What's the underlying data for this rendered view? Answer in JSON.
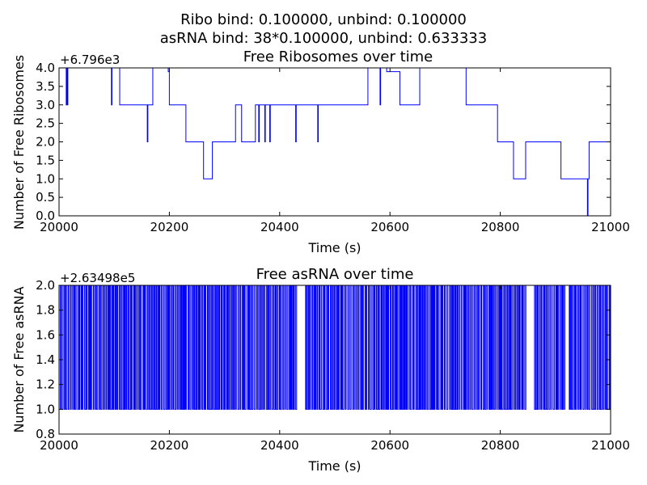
{
  "figure": {
    "suptitle_line1": "Ribo bind: 0.100000, unbind: 0.100000",
    "suptitle_line2": "asRNA bind: 38*0.100000, unbind: 0.633333"
  },
  "chart_data": [
    {
      "type": "line",
      "drawstyle": "steps-post",
      "title": "Free Ribosomes over time",
      "xlabel": "Time (s)",
      "ylabel": "Number of Free Ribosomes",
      "offset_label": "+6.796e3",
      "xlim": [
        20000,
        21000
      ],
      "ylim": [
        0.0,
        4.0
      ],
      "xticks": [
        20000,
        20200,
        20400,
        20600,
        20800,
        21000
      ],
      "yticks": [
        "0.0",
        "0.5",
        "1.0",
        "1.5",
        "2.0",
        "2.5",
        "3.0",
        "3.5",
        "4.0"
      ],
      "color": "#0000ff",
      "series": [
        {
          "x": [
            20000,
            20013,
            20014,
            20015,
            20016,
            20017,
            20095,
            20096,
            20110,
            20160,
            20161,
            20170,
            20196,
            20198,
            20200,
            20230,
            20262,
            20278,
            20320,
            20331,
            20356,
            20362,
            20363,
            20366,
            20373,
            20374,
            20375,
            20382,
            20383,
            20390,
            20429,
            20430,
            20469,
            20470,
            20560,
            20582,
            20583,
            20592,
            20594,
            20618,
            20654,
            20738,
            20795,
            20824,
            20846,
            20910,
            20958,
            20959,
            20961,
            20980,
            21000
          ],
          "y": [
            4,
            3,
            4,
            3,
            4,
            4,
            3,
            4,
            3,
            2,
            3,
            4,
            4,
            3.9,
            3,
            2,
            1,
            2,
            3,
            2,
            3,
            2,
            3,
            3,
            2,
            3,
            3,
            2,
            3,
            3,
            2,
            3,
            2,
            3,
            4,
            3,
            4,
            4,
            3.9,
            3,
            4,
            3,
            2,
            1,
            2,
            1,
            0,
            1,
            2,
            2,
            2
          ]
        }
      ]
    },
    {
      "type": "line",
      "drawstyle": "steps-post",
      "title": "Free asRNA over time",
      "xlabel": "Time (s)",
      "ylabel": "Number of Free asRNA",
      "offset_label": "+2.63498e5",
      "xlim": [
        20000,
        21000
      ],
      "ylim": [
        0.8,
        2.0
      ],
      "xticks": [
        20000,
        20200,
        20400,
        20600,
        20800,
        21000
      ],
      "yticks": [
        "0.8",
        "1.0",
        "1.2",
        "1.4",
        "1.6",
        "1.8",
        "2.0"
      ],
      "values_alternate_between": [
        1,
        2
      ],
      "gaps_at_two": [
        [
          20431,
          20447
        ],
        [
          20847,
          20862
        ],
        [
          20917,
          20925
        ]
      ],
      "color": "#0000ff"
    }
  ]
}
